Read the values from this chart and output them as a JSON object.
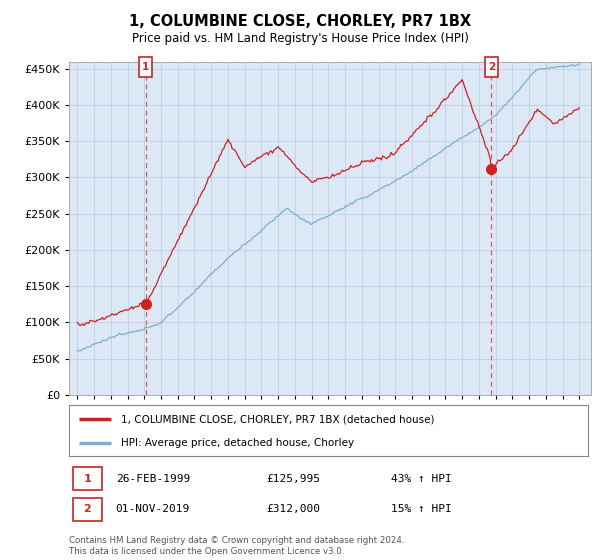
{
  "title": "1, COLUMBINE CLOSE, CHORLEY, PR7 1BX",
  "subtitle": "Price paid vs. HM Land Registry's House Price Index (HPI)",
  "ytick_vals": [
    0,
    50000,
    100000,
    150000,
    200000,
    250000,
    300000,
    350000,
    400000,
    450000
  ],
  "ylim": [
    0,
    460000
  ],
  "hpi_color": "#7bafd4",
  "price_color": "#cc2222",
  "vline_color": "#dd4444",
  "marker_fill": "#cc2222",
  "plot_bg_color": "#dce8f5",
  "bg_color": "#ffffff",
  "grid_color": "#bbccdd",
  "legend_line1": "1, COLUMBINE CLOSE, CHORLEY, PR7 1BX (detached house)",
  "legend_line2": "HPI: Average price, detached house, Chorley",
  "marker1_label": "26-FEB-1999",
  "marker1_price": "£125,995",
  "marker1_pct": "43% ↑ HPI",
  "marker2_label": "01-NOV-2019",
  "marker2_price": "£312,000",
  "marker2_pct": "15% ↑ HPI",
  "footer": "Contains HM Land Registry data © Crown copyright and database right 2024.\nThis data is licensed under the Open Government Licence v3.0."
}
